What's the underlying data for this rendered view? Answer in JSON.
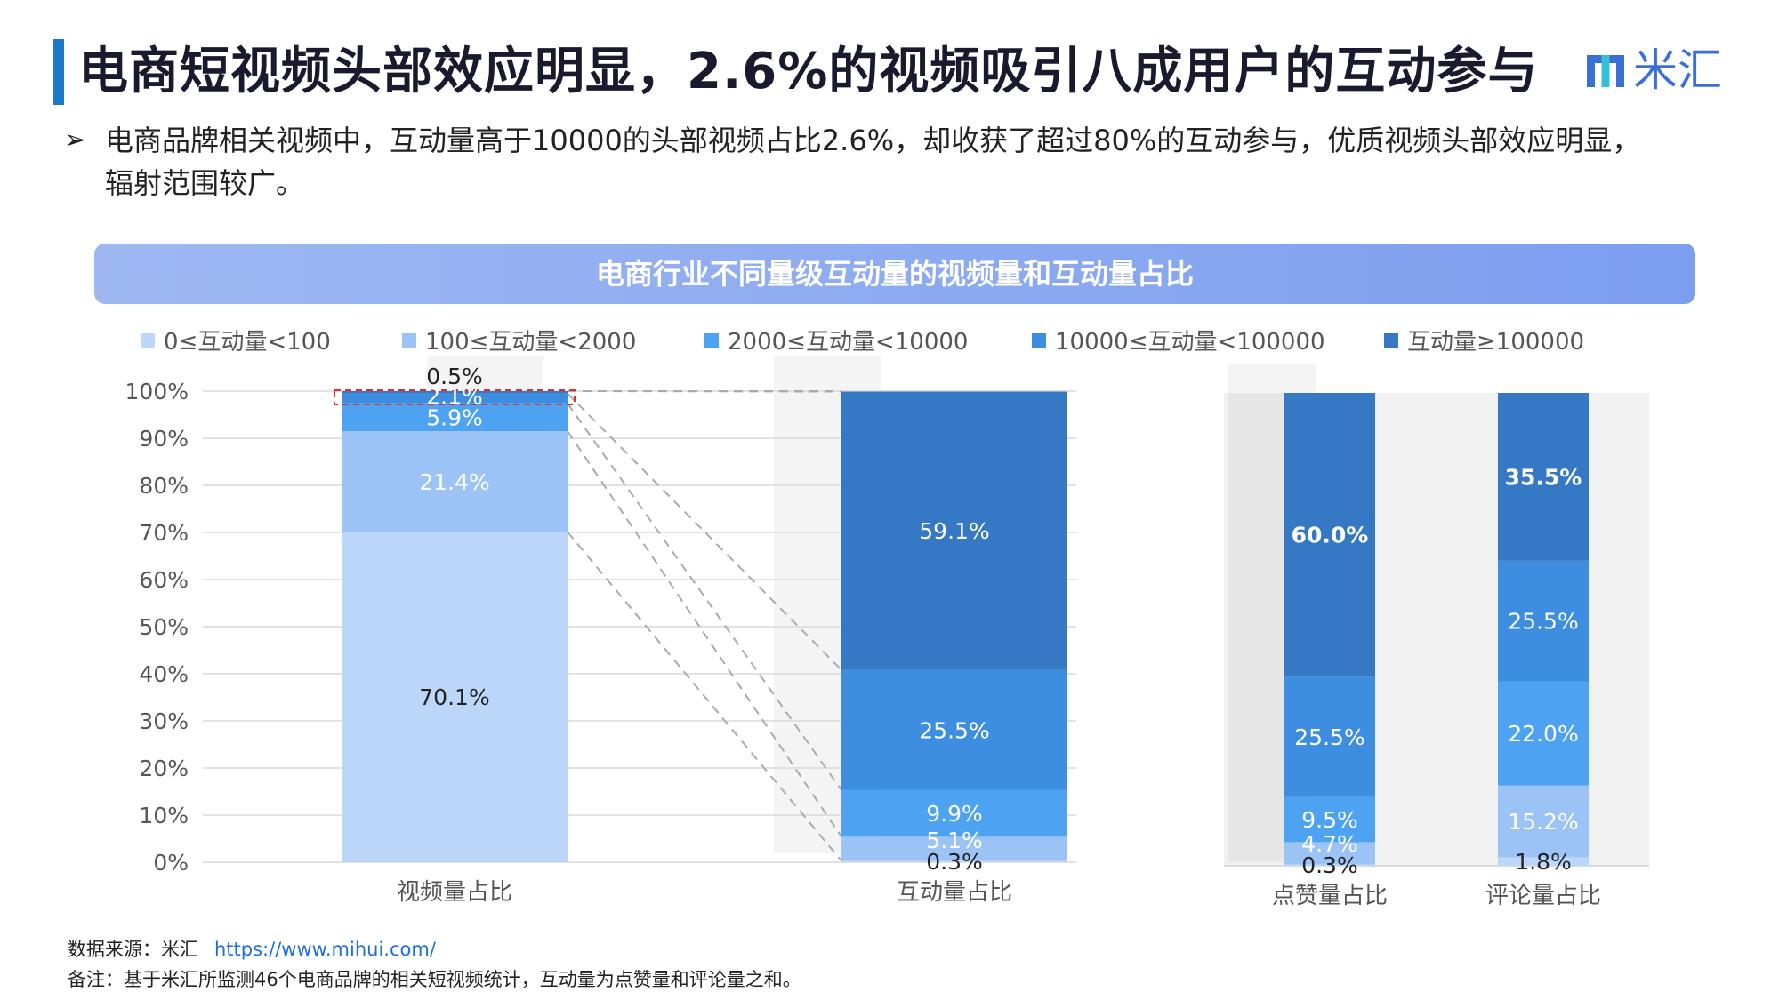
{
  "page": {
    "title": "电商短视频头部效应明显，2.6%的视频吸引八成用户的互动参与",
    "logo_text": "米汇",
    "bullet_line1": "电商品牌相关视频中，互动量高于10000的头部视频占比2.6%，却收获了超过80%的互动参与，优质视频头部效应明显，",
    "bullet_line2": "辐射范围较广。",
    "bullet_icon": "arrow-bullet-icon",
    "source_label": "数据来源：米汇",
    "source_url": "https://www.mihui.com/",
    "note": "备注：基于米汇所监测46个电商品牌的相关短视频统计，互动量为点赞量和评论量之和。"
  },
  "colors": {
    "accent": "#1e78c8",
    "brand": "#3a6fd8",
    "banner": "#8aa9f1",
    "series": [
      "#bdd7fb",
      "#9cc3f5",
      "#4da3f2",
      "#3d8ee0",
      "#3578c4"
    ]
  },
  "chart_data": {
    "type": "bar",
    "stacked": true,
    "title": "电商行业不同量级互动量的视频量和互动量占比",
    "categories": [
      "视频量占比",
      "互动量占比",
      "点赞量占比",
      "评论量占比"
    ],
    "y_ticks": [
      "0%",
      "10%",
      "20%",
      "30%",
      "40%",
      "50%",
      "60%",
      "70%",
      "80%",
      "90%",
      "100%"
    ],
    "ylim": [
      0,
      100
    ],
    "legend_position": "top",
    "series": [
      {
        "name": "0≤互动量<100",
        "values": [
          70.1,
          0.3,
          0.3,
          1.8
        ],
        "labels": [
          "70.1%",
          "0.3%",
          "0.3%",
          "1.8%"
        ]
      },
      {
        "name": "100≤互动量<2000",
        "values": [
          21.4,
          5.1,
          4.7,
          15.2
        ],
        "labels": [
          "21.4%",
          "5.1%",
          "4.7%",
          "15.2%"
        ]
      },
      {
        "name": "2000≤互动量<10000",
        "values": [
          5.9,
          9.9,
          9.5,
          22.0
        ],
        "labels": [
          "5.9%",
          "9.9%",
          "9.5%",
          "22.0%"
        ]
      },
      {
        "name": "10000≤互动量<100000",
        "values": [
          2.1,
          25.5,
          25.5,
          25.5
        ],
        "labels": [
          "2.1%",
          "25.5%",
          "25.5%",
          "25.5%"
        ]
      },
      {
        "name": "互动量≥100000",
        "values": [
          0.5,
          59.1,
          60.0,
          35.5
        ],
        "labels": [
          "0.5%",
          "59.1%",
          "60.0%",
          "35.5%"
        ]
      }
    ]
  }
}
